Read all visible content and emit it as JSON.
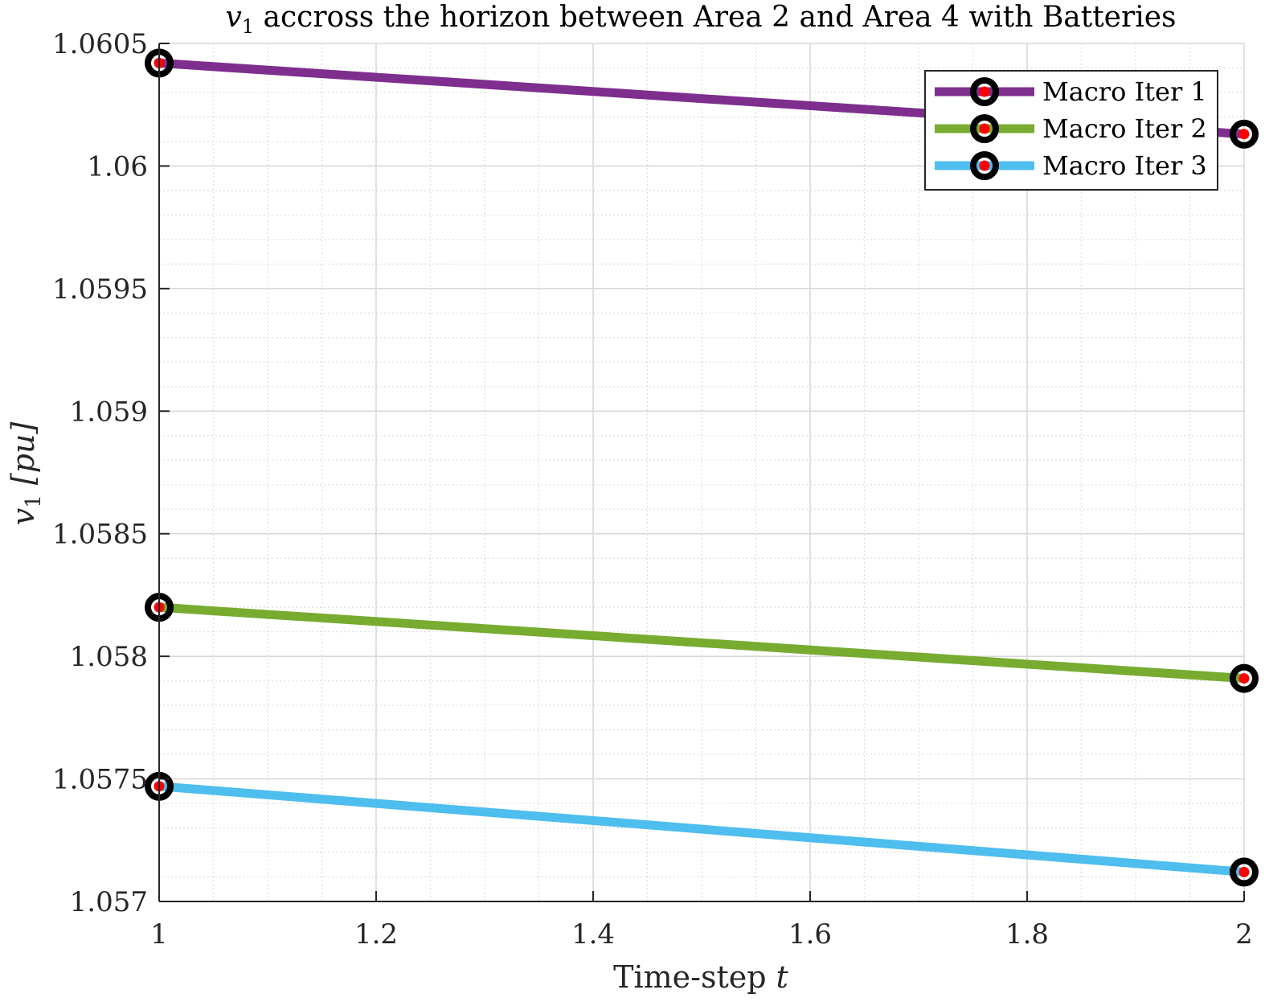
{
  "chart_data": {
    "type": "line",
    "title_prefix": "v",
    "title_sub": "1",
    "title_rest": " accross the horizon between Area 2 and Area 4 with Batteries",
    "xlabel_text": "Time-step ",
    "xlabel_var": "t",
    "ylabel_var": "v",
    "ylabel_sub": "1",
    "ylabel_unit": " [pu]",
    "xlim": [
      1,
      2
    ],
    "ylim": [
      1.057,
      1.0605
    ],
    "xticks": [
      1,
      1.2,
      1.4,
      1.6,
      1.8,
      2
    ],
    "xtick_labels": [
      "1",
      "1.2",
      "1.4",
      "1.6",
      "1.8",
      "2"
    ],
    "yticks": [
      1.057,
      1.0575,
      1.058,
      1.0585,
      1.059,
      1.0595,
      1.06,
      1.0605
    ],
    "ytick_labels": [
      "1.057",
      "1.0575",
      "1.058",
      "1.0585",
      "1.059",
      "1.0595",
      "1.06",
      "1.0605"
    ],
    "grid": true,
    "minor_grid": true,
    "legend_position": "top-right",
    "marker_outer_color": "#000000",
    "marker_inner_color": "#ff0000",
    "series": [
      {
        "name": "Macro Iter 1",
        "color": "#7e2f8e",
        "x": [
          1,
          2
        ],
        "y": [
          1.06042,
          1.06013
        ]
      },
      {
        "name": "Macro Iter 2",
        "color": "#77ac30",
        "x": [
          1,
          2
        ],
        "y": [
          1.0582,
          1.05791
        ]
      },
      {
        "name": "Macro Iter 3",
        "color": "#4dbeee",
        "x": [
          1,
          2
        ],
        "y": [
          1.05747,
          1.05712
        ]
      }
    ]
  }
}
